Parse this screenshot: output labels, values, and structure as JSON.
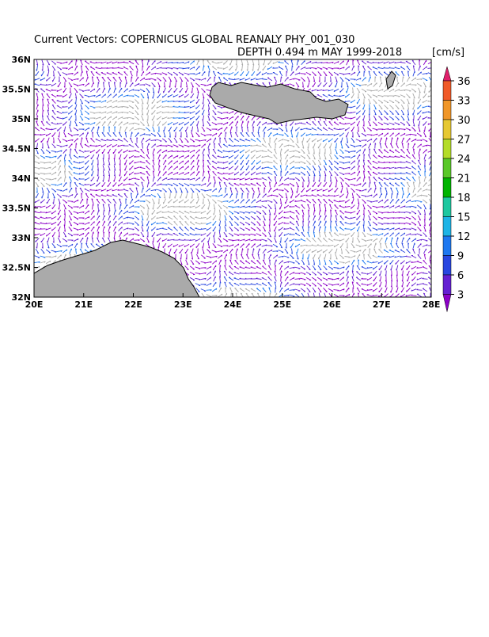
{
  "title": "Current Vectors: COPERNICUS GLOBAL REANALY PHY_001_030",
  "subtitle": "DEPTH 0.494 m   MAY 1999-2018",
  "units": "[cm/s]",
  "map": {
    "xticks": [
      "20E",
      "21E",
      "22E",
      "23E",
      "24E",
      "25E",
      "26E",
      "27E",
      "28E"
    ],
    "yticks": [
      "36N",
      "35.5N",
      "35N",
      "34.5N",
      "34N",
      "33.5N",
      "33N",
      "32.5N",
      "32N"
    ]
  },
  "colorbar": {
    "labels": [
      "36",
      "33",
      "30",
      "27",
      "24",
      "21",
      "18",
      "15",
      "12",
      "9",
      "6",
      "3"
    ],
    "colors": [
      "#e0206a",
      "#f05a28",
      "#f09628",
      "#e6c832",
      "#b4dc28",
      "#5ac828",
      "#00b400",
      "#1ec8a0",
      "#1eb4e6",
      "#1e78f0",
      "#2846e0",
      "#6420d2",
      "#8c00c8"
    ]
  }
}
